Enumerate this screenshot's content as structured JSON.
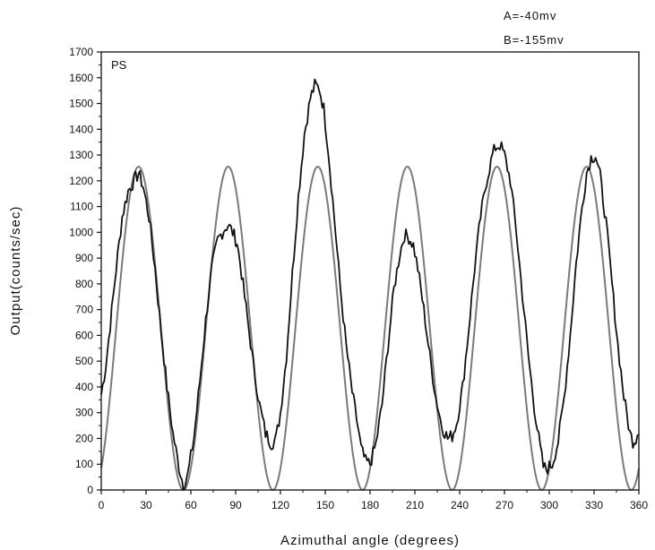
{
  "chart_data": {
    "type": "line",
    "panel_label": "PS",
    "xlabel": "Azimuthal angle (degrees)",
    "ylabel": "Output(counts/sec)",
    "xlim": [
      0,
      360
    ],
    "ylim": [
      0,
      1700
    ],
    "x_ticks": [
      0,
      30,
      60,
      90,
      120,
      150,
      180,
      210,
      240,
      270,
      300,
      330,
      360
    ],
    "y_ticks": [
      0,
      100,
      200,
      300,
      400,
      500,
      600,
      700,
      800,
      900,
      1000,
      1100,
      1200,
      1300,
      1400,
      1500,
      1600,
      1700
    ],
    "annotations": [
      "A=-40mv",
      "B=-155mv"
    ],
    "grid": false,
    "series": [
      {
        "style": "measured-noisy",
        "color": "#111111",
        "x": [
          0,
          3,
          6,
          10,
          14,
          18,
          22,
          25,
          28,
          32,
          36,
          40,
          44,
          48,
          52,
          55,
          58,
          62,
          66,
          70,
          74,
          78,
          82,
          85,
          88,
          91,
          94,
          98,
          102,
          106,
          110,
          114,
          117,
          120,
          124,
          128,
          132,
          136,
          140,
          143,
          146,
          149,
          152,
          156,
          160,
          164,
          168,
          172,
          174,
          177,
          180,
          184,
          188,
          192,
          196,
          200,
          203,
          206,
          209,
          212,
          216,
          220,
          224,
          228,
          232,
          235,
          238,
          242,
          246,
          250,
          254,
          258,
          262,
          264,
          267,
          270,
          274,
          278,
          282,
          286,
          290,
          294,
          296,
          298,
          302,
          306,
          310,
          314,
          318,
          322,
          325,
          328,
          331,
          334,
          338,
          342,
          346,
          350,
          354,
          356,
          358,
          360
        ],
        "y": [
          370,
          480,
          640,
          860,
          1060,
          1160,
          1200,
          1230,
          1180,
          1060,
          860,
          620,
          400,
          220,
          90,
          20,
          60,
          200,
          420,
          660,
          860,
          970,
          1010,
          1030,
          1000,
          960,
          840,
          660,
          480,
          330,
          220,
          180,
          200,
          300,
          520,
          840,
          1140,
          1380,
          1520,
          1570,
          1560,
          1480,
          1320,
          1060,
          790,
          560,
          380,
          240,
          160,
          110,
          100,
          180,
          330,
          560,
          780,
          920,
          990,
          980,
          950,
          860,
          700,
          520,
          360,
          250,
          200,
          210,
          260,
          400,
          620,
          860,
          1060,
          1200,
          1300,
          1330,
          1340,
          1300,
          1200,
          1000,
          760,
          520,
          320,
          160,
          90,
          80,
          100,
          190,
          360,
          600,
          880,
          1100,
          1230,
          1290,
          1300,
          1220,
          1040,
          800,
          560,
          360,
          220,
          190,
          200,
          240
        ]
      },
      {
        "style": "fitted-smooth",
        "color": "#7a7a7a",
        "model": "sin^2",
        "amplitude": 1255,
        "period_deg": 60,
        "phase_deg": 25
      }
    ]
  }
}
